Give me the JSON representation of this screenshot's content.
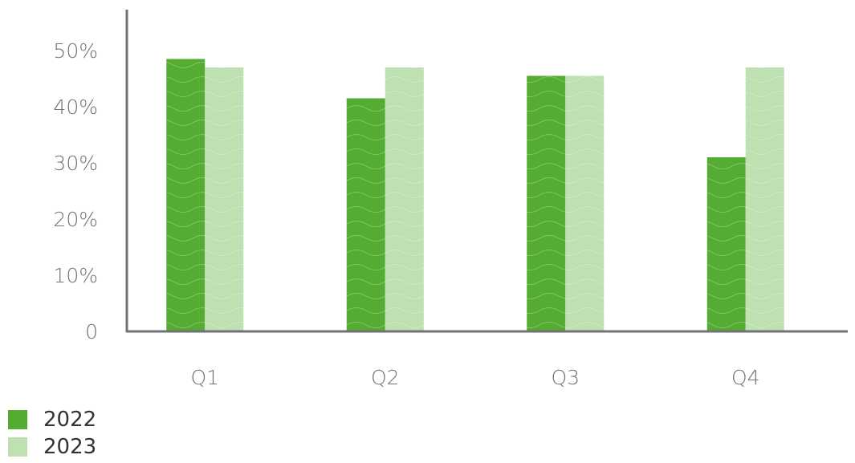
{
  "chart_data": {
    "type": "bar",
    "categories": [
      "Q1",
      "Q2",
      "Q3",
      "Q4"
    ],
    "series": [
      {
        "name": "2022",
        "values": [
          48.5,
          41.5,
          45.5,
          31.0
        ],
        "color": "#55ac32"
      },
      {
        "name": "2023",
        "values": [
          47.0,
          47.0,
          45.5,
          47.0
        ],
        "color": "#bfe0b1"
      }
    ],
    "yticks": [
      "0",
      "10%",
      "20%",
      "30%",
      "40%",
      "50%"
    ],
    "ylim": [
      0,
      52
    ],
    "grid": false,
    "legend_position": "bottom-left",
    "axis_color": "#6f7376",
    "title": "",
    "xlabel": "",
    "ylabel": ""
  }
}
